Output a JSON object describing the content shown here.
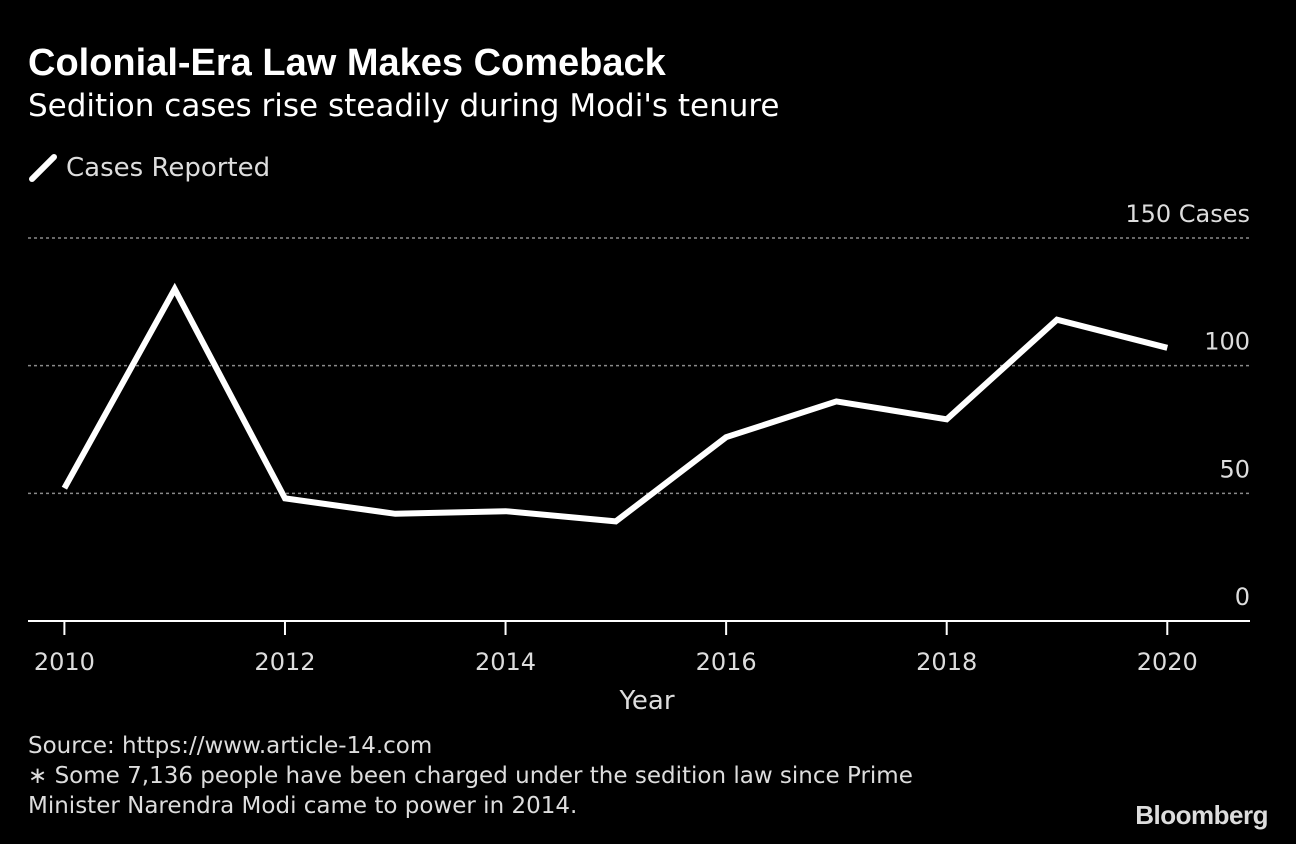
{
  "chart_data": {
    "type": "line",
    "title": "Colonial-Era Law Makes Comeback",
    "subtitle": "Sedition cases rise steadily during Modi's tenure",
    "x": [
      2010,
      2011,
      2012,
      2013,
      2014,
      2015,
      2016,
      2017,
      2018,
      2019,
      2020
    ],
    "series": [
      {
        "name": "Cases Reported",
        "values": [
          52,
          130,
          48,
          42,
          43,
          39,
          72,
          86,
          79,
          118,
          107
        ]
      }
    ],
    "xlabel": "Year",
    "ylabel": "",
    "xlim": [
      2009.67,
      2020.75
    ],
    "ylim": [
      0,
      150
    ],
    "x_ticks": [
      2010,
      2012,
      2014,
      2016,
      2018,
      2020
    ],
    "x_tick_labels": [
      "2010",
      "2012",
      "2014",
      "2016",
      "2018",
      "2020"
    ],
    "y_ticks": [
      0,
      50,
      100,
      150
    ],
    "y_tick_labels": [
      "0",
      "50",
      "100",
      "150  Cases"
    ],
    "grid": true,
    "legend_position": "top-left",
    "line_color": "#ffffff",
    "background_color": "#000000",
    "grid_color": "#8a8a8a"
  },
  "footer": {
    "source": "Source: https://www.article-14.com",
    "note_line1": "∗ Some 7,136 people have been charged under the sedition law since Prime",
    "note_line2": "Minister Narendra Modi came to power in 2014.",
    "brand": "Bloomberg"
  }
}
